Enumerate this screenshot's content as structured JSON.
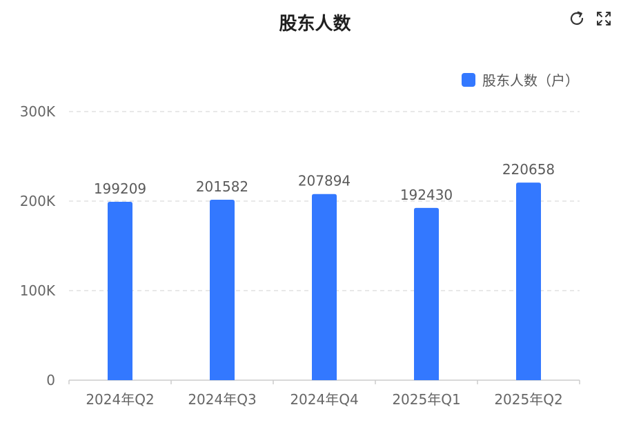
{
  "toolbar": {
    "refresh_icon": "refresh-icon",
    "fullscreen_icon": "fullscreen-icon"
  },
  "colors": {
    "bar": "#3378FF",
    "grid": "#E0E0E0",
    "axis": "#CCCCCC"
  },
  "chart_data": {
    "type": "bar",
    "title": "股东人数",
    "xlabel": "",
    "ylabel": "",
    "categories": [
      "2024年Q2",
      "2024年Q3",
      "2024年Q4",
      "2025年Q1",
      "2025年Q2"
    ],
    "series": [
      {
        "name": "股东人数（户）",
        "values": [
          199209,
          201582,
          207894,
          192430,
          220658
        ]
      }
    ],
    "data_labels": [
      "199209",
      "201582",
      "207894",
      "192430",
      "220658"
    ],
    "ylim": [
      0,
      300000
    ],
    "yticks": [
      0,
      100000,
      200000,
      300000
    ],
    "ytick_labels": [
      "0",
      "100K",
      "200K",
      "300K"
    ],
    "grid": true,
    "legend_position": "top-right"
  }
}
